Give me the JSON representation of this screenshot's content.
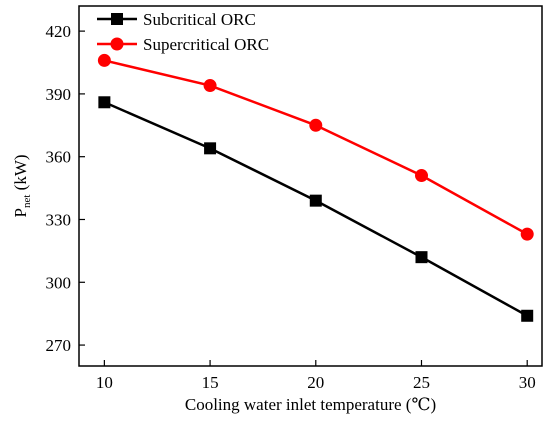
{
  "chart_data": {
    "type": "line",
    "title": "",
    "xlabel": "Cooling water inlet temperature (℃)",
    "ylabel_main": "P",
    "ylabel_sub": "net",
    "ylabel_unit": " (kW)",
    "x": [
      10,
      15,
      20,
      25,
      30
    ],
    "xlim": [
      8.8,
      30.7
    ],
    "ylim": [
      260,
      432
    ],
    "xticks": [
      10,
      15,
      20,
      25,
      30
    ],
    "yticks": [
      270,
      300,
      330,
      360,
      390,
      420
    ],
    "grid": false,
    "legend_position": "top-left",
    "series": [
      {
        "name": "Subcritical ORC",
        "color": "#000000",
        "marker": "square",
        "values": [
          386,
          364,
          339,
          312,
          284
        ]
      },
      {
        "name": "Supercritical ORC",
        "color": "#ff0000",
        "marker": "circle",
        "values": [
          406,
          394,
          375,
          351,
          323
        ]
      }
    ]
  }
}
